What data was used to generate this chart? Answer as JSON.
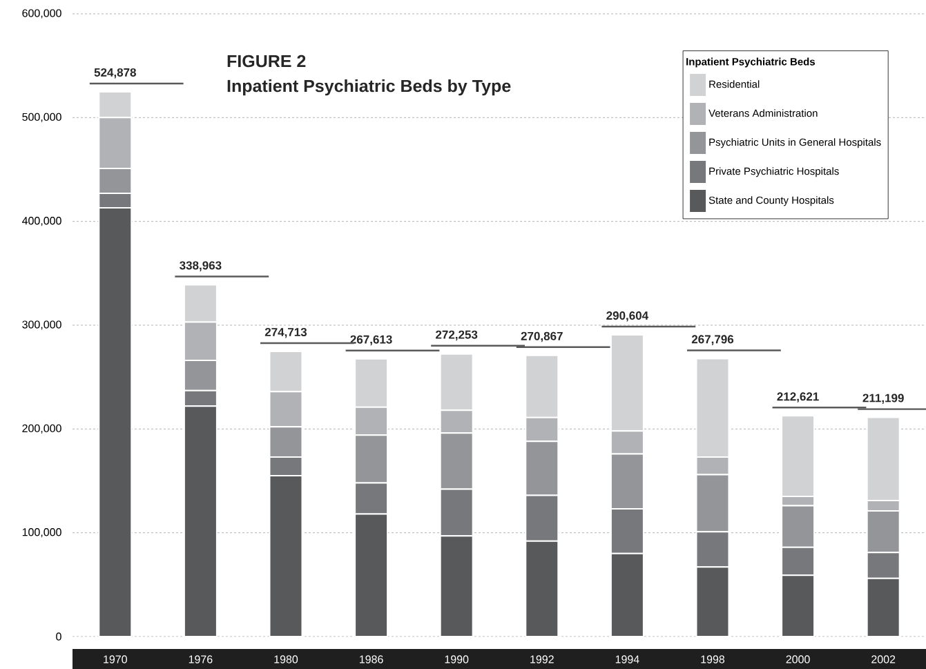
{
  "chart_data": {
    "type": "bar",
    "stacked": true,
    "title": "FIGURE 2",
    "subtitle": "Inpatient Psychiatric Beds by Type",
    "legend_title": "Inpatient Psychiatric Beds",
    "categories": [
      "1970",
      "1976",
      "1980",
      "1986",
      "1990",
      "1992",
      "1994",
      "1998",
      "2000",
      "2002"
    ],
    "series": [
      {
        "name": "State and County Hospitals",
        "color": "#58595b",
        "values": [
          413000,
          222000,
          155000,
          118000,
          97000,
          92000,
          80000,
          67000,
          59000,
          56000
        ]
      },
      {
        "name": "Private Psychiatric Hospitals",
        "color": "#77787b",
        "values": [
          14000,
          15000,
          18000,
          30000,
          45000,
          44000,
          43000,
          34000,
          27000,
          25000
        ]
      },
      {
        "name": "Psychiatric Units in General Hospitals",
        "color": "#949599",
        "values": [
          24000,
          29000,
          29000,
          46000,
          54000,
          52000,
          53000,
          55000,
          40000,
          40000
        ]
      },
      {
        "name": "Veterans Administration",
        "color": "#b1b2b5",
        "values": [
          49000,
          37000,
          34000,
          27000,
          22000,
          23000,
          22000,
          17000,
          9000,
          10000
        ]
      },
      {
        "name": "Residential",
        "color": "#d1d2d4",
        "values": [
          24878,
          35963,
          38713,
          46613,
          54253,
          59867,
          92604,
          94796,
          77621,
          80199
        ]
      }
    ],
    "totals": [
      "524,878",
      "338,963",
      "274,713",
      "267,613",
      "272,253",
      "270,867",
      "290,604",
      "267,796",
      "212,621",
      "211,199"
    ],
    "ylim": [
      0,
      600000
    ],
    "yticks": [
      0,
      {
        "value": 100000,
        "label": "100,000"
      },
      {
        "value": 200000,
        "label": "200,000"
      },
      {
        "value": 300000,
        "label": "300,000"
      },
      {
        "value": 400000,
        "label": "400,000"
      },
      {
        "value": 500000,
        "label": "500,000"
      },
      {
        "value": 600000,
        "label": "600,000"
      }
    ],
    "grid": "y",
    "legend": "top right"
  }
}
